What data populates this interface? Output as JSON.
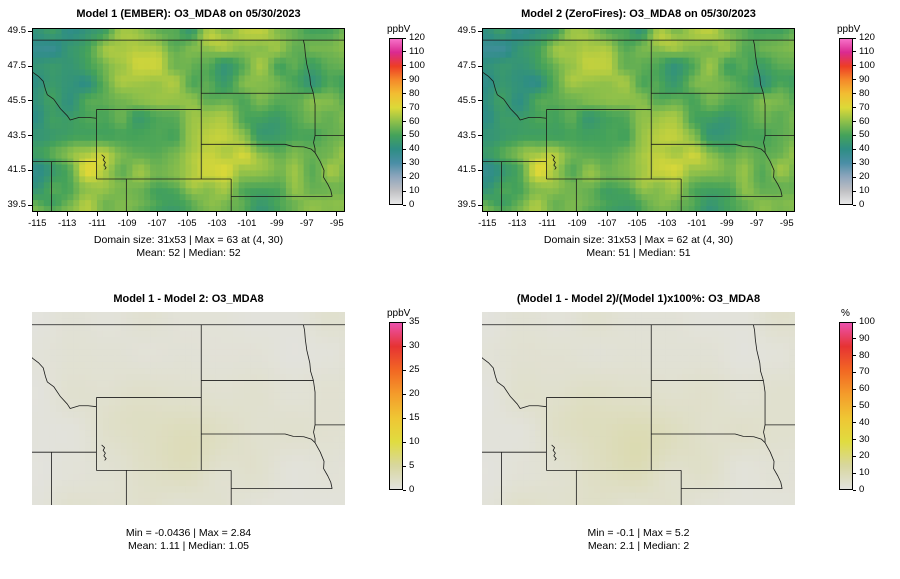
{
  "figure": {
    "background": "#ffffff",
    "line_color": "#1b1b1b"
  },
  "palettes": {
    "conc": {
      "positions": [
        0,
        0.0833,
        0.1667,
        0.25,
        0.3333,
        0.4167,
        0.5,
        0.5833,
        0.6667,
        0.75,
        0.8333,
        0.9167,
        1
      ],
      "colors": [
        "#e9e9e9",
        "#bfbfc3",
        "#8ea6bd",
        "#4a8ea6",
        "#2e8e84",
        "#44a25a",
        "#8ec04a",
        "#dcd938",
        "#f2be32",
        "#f5892a",
        "#ed3d25",
        "#da2a90",
        "#f873cb"
      ]
    },
    "diff": {
      "positions": [
        0,
        0.143,
        0.286,
        0.429,
        0.571,
        0.714,
        0.857,
        1
      ],
      "colors": [
        "#e3e3df",
        "#d8d79e",
        "#e0dc40",
        "#efc634",
        "#f49c2b",
        "#f26723",
        "#e63333",
        "#ec52b0"
      ]
    }
  },
  "chart_data": [
    {
      "type": "heatmap",
      "panel": "top-left",
      "title": "Model 1 (EMBER): O3_MDA8 on 05/30/2023",
      "variable": "O3_MDA8",
      "date": "05/30/2023",
      "grid": "31x53",
      "lon_range": [
        -115.35,
        -94.45
      ],
      "lat_range": [
        39.1,
        49.7
      ],
      "x_ticks": [
        -115,
        -113,
        -111,
        -109,
        -107,
        -105,
        -103,
        -101,
        -99,
        -97,
        -95
      ],
      "y_ticks": [
        49.5,
        47.5,
        45.5,
        43.5,
        41.5,
        39.5
      ],
      "colorbar": {
        "unit": "ppbV",
        "min": 0,
        "max": 120,
        "ticks": [
          0,
          10,
          20,
          30,
          40,
          50,
          60,
          70,
          80,
          90,
          100,
          110,
          120
        ],
        "palette": "conc"
      },
      "stats": {
        "domain_size": "31x53",
        "max": 63,
        "max_at": "(4, 30)",
        "mean": 52,
        "median": 52
      },
      "caption": [
        "Domain size: 31x53 | Max = 63 at (4, 30)",
        "Mean: 52 |  Median: 52"
      ],
      "field": "conc1"
    },
    {
      "type": "heatmap",
      "panel": "top-right",
      "title": "Model 2 (ZeroFires): O3_MDA8 on 05/30/2023",
      "variable": "O3_MDA8",
      "date": "05/30/2023",
      "grid": "31x53",
      "lon_range": [
        -115.35,
        -94.45
      ],
      "lat_range": [
        39.1,
        49.7
      ],
      "x_ticks": [
        -115,
        -113,
        -111,
        -109,
        -107,
        -105,
        -103,
        -101,
        -99,
        -97,
        -95
      ],
      "y_ticks": [
        49.5,
        47.5,
        45.5,
        43.5,
        41.5,
        39.5
      ],
      "colorbar": {
        "unit": "ppbV",
        "min": 0,
        "max": 120,
        "ticks": [
          0,
          10,
          20,
          30,
          40,
          50,
          60,
          70,
          80,
          90,
          100,
          110,
          120
        ],
        "palette": "conc"
      },
      "stats": {
        "domain_size": "31x53",
        "max": 62,
        "max_at": "(4, 30)",
        "mean": 51,
        "median": 51
      },
      "caption": [
        "Domain size: 31x53 | Max = 62 at (4, 30)",
        "Mean: 51 |  Median: 51"
      ],
      "field": "conc2"
    },
    {
      "type": "heatmap",
      "panel": "bottom-left",
      "title": "Model 1 - Model 2: O3_MDA8",
      "variable": "O3_MDA8",
      "lon_range": [
        -115.35,
        -94.45
      ],
      "lat_range": [
        39.1,
        49.7
      ],
      "x_ticks": [],
      "y_ticks": [],
      "colorbar": {
        "unit": "ppbV",
        "min": 0,
        "max": 35,
        "ticks": [
          0,
          5,
          10,
          15,
          20,
          25,
          30,
          35
        ],
        "palette": "diff"
      },
      "stats": {
        "min": -0.0436,
        "max": 2.84,
        "mean": 1.11,
        "median": 1.05
      },
      "caption": [
        "Min = -0.0436 | Max = 2.84",
        "Mean: 1.11 |  Median: 1.05"
      ],
      "field": "diff"
    },
    {
      "type": "heatmap",
      "panel": "bottom-right",
      "title": "(Model 1 - Model 2)/(Model 1)x100%: O3_MDA8",
      "variable": "O3_MDA8",
      "lon_range": [
        -115.35,
        -94.45
      ],
      "lat_range": [
        39.1,
        49.7
      ],
      "x_ticks": [],
      "y_ticks": [],
      "colorbar": {
        "unit": "%",
        "min": 0,
        "max": 100,
        "ticks": [
          0,
          10,
          20,
          30,
          40,
          50,
          60,
          70,
          80,
          90,
          100
        ],
        "palette": "diff"
      },
      "stats": {
        "min": -0.1,
        "max": 5.2,
        "mean": 2.1,
        "median": 2
      },
      "caption": [
        "Min = -0.1 | Max = 5.2",
        "Mean: 2.1 |  Median: 2"
      ],
      "field": "pct"
    }
  ]
}
